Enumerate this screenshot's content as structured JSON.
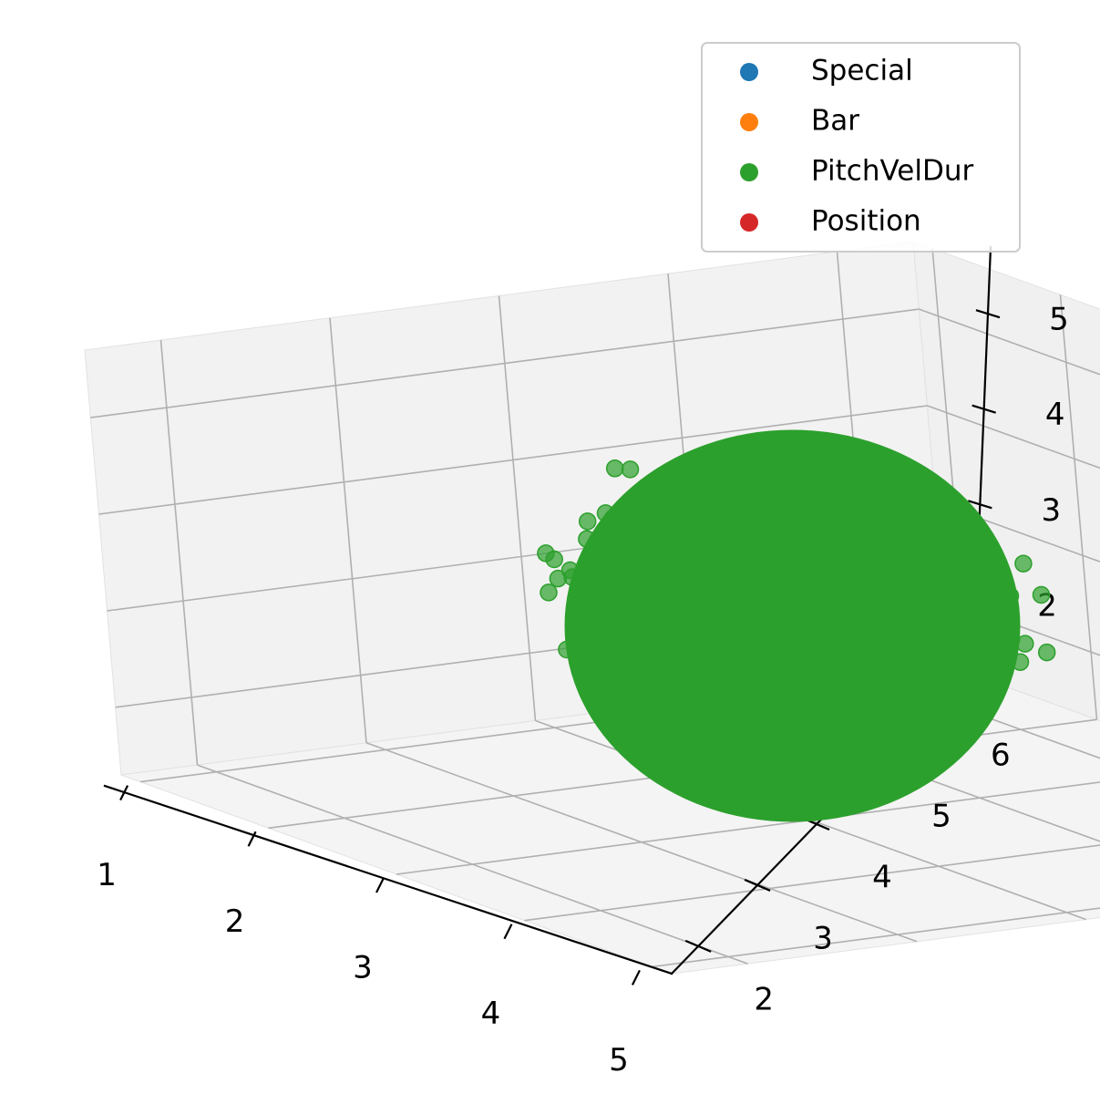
{
  "chart_data": {
    "type": "scatter",
    "projection": "3d",
    "title": "",
    "xlabel": "",
    "ylabel": "",
    "zlabel": "",
    "grid": true,
    "legend_position": "top-right",
    "x_ticks": [
      "1",
      "2",
      "3",
      "4",
      "5"
    ],
    "y_ticks": [
      "2",
      "3",
      "4",
      "5",
      "6"
    ],
    "z_ticks": [
      "2",
      "3",
      "4",
      "5"
    ],
    "xlim": [
      0.85,
      5.15
    ],
    "ylim": [
      1.55,
      6.45
    ],
    "zlim": [
      1.3,
      5.7
    ],
    "series": [
      {
        "name": "Special",
        "color": "#1f77b4",
        "points": []
      },
      {
        "name": "Bar",
        "color": "#ff7f0e",
        "points": []
      },
      {
        "name": "PitchVelDur",
        "color": "#2ca02c",
        "alpha": 0.7,
        "cluster": {
          "center": [
            3.0,
            4.0,
            3.5
          ],
          "spread": [
            0.75,
            0.8,
            0.75
          ],
          "approx_count": 3000
        }
      },
      {
        "name": "Position",
        "color": "#d62728",
        "points": []
      }
    ]
  }
}
